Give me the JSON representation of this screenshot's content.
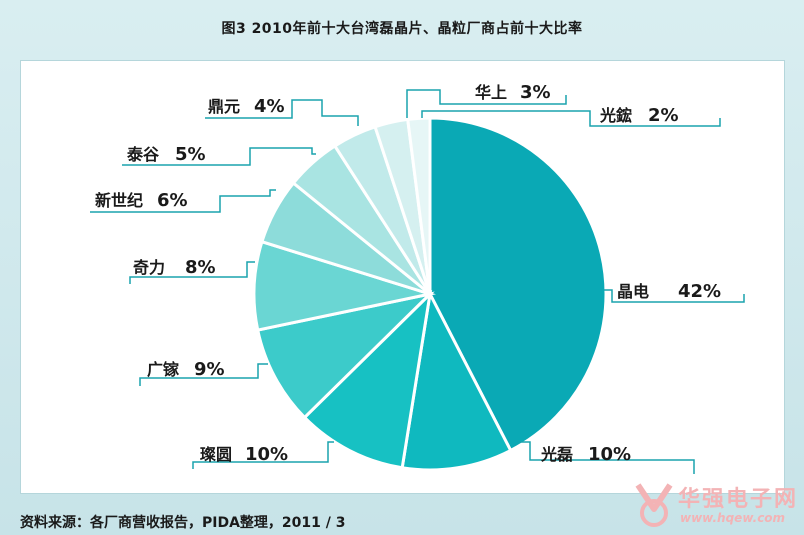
{
  "title": "图3  2010年前十大台湾磊晶片、晶粒厂商占前十大比率",
  "source": "资料来源：各厂商营收报告，PIDA整理，2011 / 3",
  "watermark": {
    "name": "华强电子网",
    "url": "www.hqew.com"
  },
  "colors": {
    "accent": "#1aa3ad",
    "background": "#cfe8ec",
    "panel": "#ffffff"
  },
  "chart_data": {
    "type": "pie",
    "title": "图3  2010年前十大台湾磊晶片、晶粒厂商占前十大比率",
    "slices": [
      {
        "label": "晶电",
        "value": 42,
        "display": "42%",
        "color": "#0aa9b5"
      },
      {
        "label": "光磊",
        "value": 10,
        "display": "10%",
        "color": "#0fb9bf"
      },
      {
        "label": "璨圆",
        "value": 10,
        "display": "10%",
        "color": "#17c1c3"
      },
      {
        "label": "广镓",
        "value": 9,
        "display": "9%",
        "color": "#3ccbca"
      },
      {
        "label": "奇力",
        "value": 8,
        "display": "8%",
        "color": "#6ad6d3"
      },
      {
        "label": "新世纪",
        "value": 6,
        "display": "6%",
        "color": "#8ddcda"
      },
      {
        "label": "泰谷",
        "value": 5,
        "display": "5%",
        "color": "#a9e4e2"
      },
      {
        "label": "鼎元",
        "value": 4,
        "display": "4%",
        "color": "#c1eaea"
      },
      {
        "label": "华上",
        "value": 3,
        "display": "3%",
        "color": "#d5f0f0"
      },
      {
        "label": "光鋐",
        "value": 2,
        "display": "2%",
        "color": "#e6f6f6"
      }
    ]
  }
}
